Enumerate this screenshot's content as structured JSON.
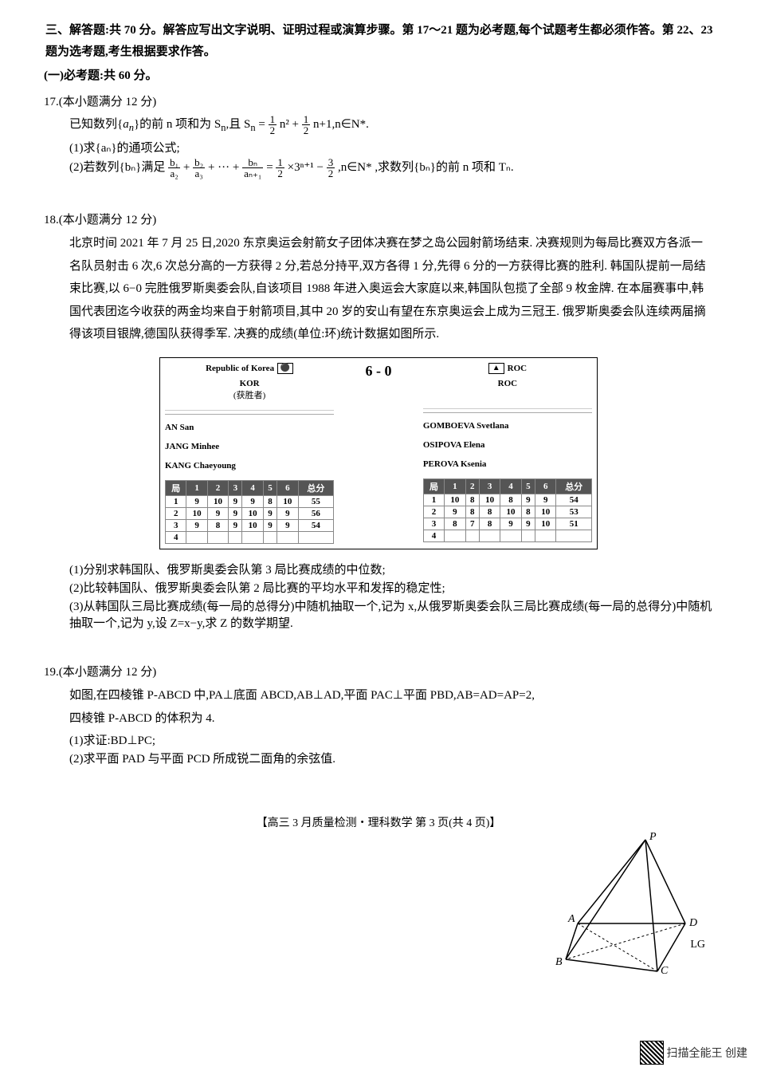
{
  "section3_heading": "三、解答题:共 70 分。解答应写出文字说明、证明过程或演算步骤。第 17～21 题为必考题,每个试题考生都必须作答。第 22、23 题为选考题,考生根据要求作答。",
  "subsection1": "(一)必考题:共 60 分。",
  "q17_header": "17.(本小题满分 12 分)",
  "q17_l1a": "已知数列{",
  "q17_l1b": "}的前 n 项和为 S",
  "q17_l1c": ",且 S",
  "q17_l1d": " = ",
  "q17_l1e": "n² + ",
  "q17_l1f": "n+1,n∈N*.",
  "q17_sub1": "(1)求{aₙ}的通项公式;",
  "q17_sub2a": "(2)若数列{bₙ}满足",
  "q17_sub2b": " + ",
  "q17_sub2c": " + ··· + ",
  "q17_sub2d": " = ",
  "q17_sub2e": "×3ⁿ⁺¹ − ",
  "q17_sub2f": ",n∈N* ,求数列{bₙ}的前 n 项和 Tₙ.",
  "q18_header": "18.(本小题满分 12 分)",
  "q18_body": "北京时间 2021 年 7 月 25 日,2020 东京奥运会射箭女子团体决赛在梦之岛公园射箭场结束. 决赛规则为每局比赛双方各派一名队员射击 6 次,6 次总分高的一方获得 2 分,若总分持平,双方各得 1 分,先得 6 分的一方获得比赛的胜利. 韩国队提前一局结束比赛,以 6−0 完胜俄罗斯奥委会队,自该项目 1988 年进入奥运会大家庭以来,韩国队包揽了全部 9 枚金牌. 在本届赛事中,韩国代表团迄今收获的两金均来自于射箭项目,其中 20 岁的安山有望在东京奥运会上成为三冠王. 俄罗斯奥委会队连续两届摘得该项目银牌,德国队获得季军. 决赛的成绩(单位:环)统计数据如图所示.",
  "scoreboard": {
    "kor": {
      "country": "Republic of Korea",
      "code": "KOR",
      "note": "(获胜者)",
      "players": [
        "AN San",
        "JANG Minhee",
        "KANG Chaeyoung"
      ]
    },
    "center": "6  -  0",
    "roc": {
      "country": "ROC",
      "code": "ROC",
      "players": [
        "GOMBOEVA Svetlana",
        "OSIPOVA Elena",
        "PEROVA Ksenia"
      ]
    },
    "headers": [
      "局",
      "1",
      "2",
      "3",
      "4",
      "5",
      "6",
      "总分"
    ],
    "kor_data": [
      [
        "1",
        "9",
        "10",
        "9",
        "9",
        "8",
        "10",
        "55"
      ],
      [
        "2",
        "10",
        "9",
        "9",
        "10",
        "9",
        "9",
        "56"
      ],
      [
        "3",
        "9",
        "8",
        "9",
        "10",
        "9",
        "9",
        "54"
      ],
      [
        "4",
        "",
        "",
        "",
        "",
        "",
        "",
        ""
      ]
    ],
    "roc_data": [
      [
        "1",
        "10",
        "8",
        "10",
        "8",
        "9",
        "9",
        "54"
      ],
      [
        "2",
        "9",
        "8",
        "8",
        "10",
        "8",
        "10",
        "53"
      ],
      [
        "3",
        "8",
        "7",
        "8",
        "9",
        "9",
        "10",
        "51"
      ],
      [
        "4",
        "",
        "",
        "",
        "",
        "",
        "",
        ""
      ]
    ]
  },
  "q18_sub1": "(1)分别求韩国队、俄罗斯奥委会队第 3 局比赛成绩的中位数;",
  "q18_sub2": "(2)比较韩国队、俄罗斯奥委会队第 2 局比赛的平均水平和发挥的稳定性;",
  "q18_sub3": "(3)从韩国队三局比赛成绩(每一局的总得分)中随机抽取一个,记为 x,从俄罗斯奥委会队三局比赛成绩(每一局的总得分)中随机抽取一个,记为 y,设 Z=x−y,求 Z 的数学期望.",
  "q19_header": "19.(本小题满分 12 分)",
  "q19_body": "如图,在四棱锥 P-ABCD 中,PA⊥底面 ABCD,AB⊥AD,平面 PAC⊥平面 PBD,AB=AD=AP=2,四棱锥 P-ABCD 的体积为 4.",
  "q19_sub1": "(1)求证:BD⊥PC;",
  "q19_sub2": "(2)求平面 PAD 与平面 PCD 所成锐二面角的余弦值.",
  "footer_text": "【高三 3 月质量检测・理科数学  第 3 页(共 4 页)】",
  "footer_lg": "LG",
  "scan_text": "扫描全能王 创建",
  "pyramid": {
    "labels": {
      "P": "P",
      "A": "A",
      "B": "B",
      "C": "C",
      "D": "D"
    }
  }
}
